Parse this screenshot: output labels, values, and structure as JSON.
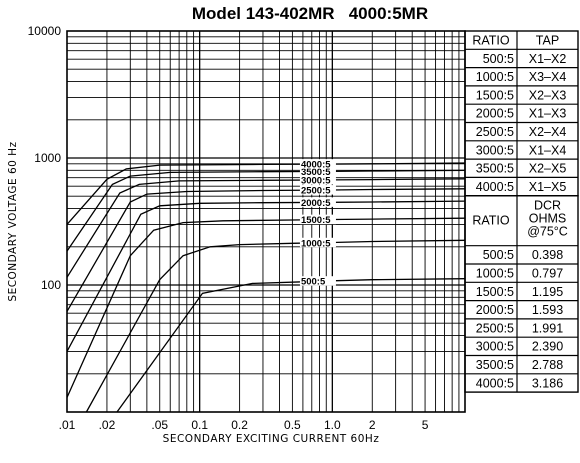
{
  "chart_data": {
    "type": "line",
    "title": "Model 143-402MR   4000:5MR",
    "xlabel": "SECONDARY EXCITING CURRENT 60Hz",
    "ylabel": "SECONDARY VOLTAGE 60 Hz",
    "x_scale": "log",
    "y_scale": "log",
    "xlim": [
      0.01,
      10
    ],
    "ylim": [
      10,
      10000
    ],
    "x_tick_labels": [
      ".01",
      ".02",
      ".05",
      "0.1",
      "0.2",
      "0.5",
      "1.0",
      "2",
      "5"
    ],
    "x_tick_values": [
      0.01,
      0.02,
      0.05,
      0.1,
      0.2,
      0.5,
      1.0,
      2,
      5
    ],
    "y_tick_labels": [
      "10000",
      "1000",
      "100"
    ],
    "y_tick_values": [
      10000,
      1000,
      100
    ],
    "grid": true,
    "series": [
      {
        "name": "500:5",
        "x": [
          0.0238,
          0.105,
          0.25,
          0.6,
          1.0,
          2.0,
          10
        ],
        "y": [
          10,
          86,
          103,
          106,
          108,
          110,
          112
        ]
      },
      {
        "name": "1000:5",
        "x": [
          0.014,
          0.05,
          0.075,
          0.12,
          0.2,
          0.5,
          1.0,
          2.0,
          10
        ],
        "y": [
          10,
          110,
          170,
          200,
          208,
          213,
          216,
          220,
          225
        ]
      },
      {
        "name": "1500:5",
        "x": [
          0.01,
          0.03,
          0.045,
          0.075,
          0.15,
          0.5,
          1.0,
          2.0,
          10
        ],
        "y": [
          13,
          170,
          270,
          310,
          320,
          325,
          328,
          330,
          336
        ]
      },
      {
        "name": "2000:5",
        "x": [
          0.01,
          0.036,
          0.05,
          0.1,
          0.3,
          1.0,
          2.0,
          10
        ],
        "y": [
          30,
          360,
          420,
          440,
          445,
          448,
          450,
          458
        ]
      },
      {
        "name": "2500:5",
        "x": [
          0.01,
          0.03,
          0.04,
          0.08,
          0.3,
          1.0,
          2.0,
          10
        ],
        "y": [
          62,
          450,
          520,
          545,
          555,
          560,
          565,
          572
        ]
      },
      {
        "name": "3000:5",
        "x": [
          0.01,
          0.025,
          0.035,
          0.07,
          0.3,
          1.0,
          2.0,
          10
        ],
        "y": [
          115,
          530,
          620,
          660,
          668,
          672,
          676,
          686
        ]
      },
      {
        "name": "3500:5",
        "x": [
          0.01,
          0.022,
          0.03,
          0.06,
          0.3,
          1.0,
          2.0,
          10
        ],
        "y": [
          185,
          620,
          720,
          770,
          780,
          785,
          790,
          800
        ]
      },
      {
        "name": "4000:5",
        "x": [
          0.01,
          0.02,
          0.028,
          0.05,
          0.3,
          1.0,
          2.0,
          10
        ],
        "y": [
          300,
          680,
          820,
          880,
          890,
          895,
          900,
          914
        ]
      }
    ]
  },
  "tap_table": {
    "headers": [
      "RATIO",
      "TAP"
    ],
    "rows": [
      [
        "500:5",
        "X1–X2"
      ],
      [
        "1000:5",
        "X3–X4"
      ],
      [
        "1500:5",
        "X2–X3"
      ],
      [
        "2000:5",
        "X1–X3"
      ],
      [
        "2500:5",
        "X2–X4"
      ],
      [
        "3000:5",
        "X1–X4"
      ],
      [
        "3500:5",
        "X2–X5"
      ],
      [
        "4000:5",
        "X1–X5"
      ]
    ]
  },
  "dcr_table": {
    "headers": [
      "RATIO",
      "DCR\nOHMS\n@75°C"
    ],
    "rows": [
      [
        "500:5",
        "0.398"
      ],
      [
        "1000:5",
        "0.797"
      ],
      [
        "1500:5",
        "1.195"
      ],
      [
        "2000:5",
        "1.593"
      ],
      [
        "2500:5",
        "1.991"
      ],
      [
        "3000:5",
        "2.390"
      ],
      [
        "3500:5",
        "2.788"
      ],
      [
        "4000:5",
        "3.186"
      ]
    ]
  }
}
